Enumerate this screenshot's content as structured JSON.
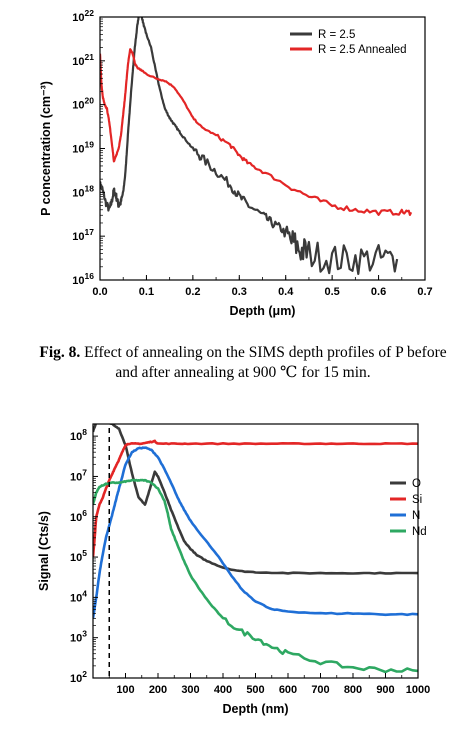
{
  "caption": {
    "label": "Fig. 8.",
    "text": "Effect of annealing on the SIMS depth profiles of P before and after annealing at 900 ℃ for 15 min."
  },
  "chart_data": [
    {
      "type": "line",
      "xlabel": "Depth (μm)",
      "ylabel": "P concentration (cm⁻³)",
      "xlim": [
        0.0,
        0.7
      ],
      "ylim": [
        1e+16,
        1e+22
      ],
      "yscale": "log",
      "xticks": [
        "0.0",
        "0.1",
        "0.2",
        "0.3",
        "0.4",
        "0.5",
        "0.6",
        "0.7"
      ],
      "yticks": [
        {
          "value": 1e+16,
          "base": "10",
          "exp": "16"
        },
        {
          "value": 1e+17,
          "base": "10",
          "exp": "17"
        },
        {
          "value": 1e+18,
          "base": "10",
          "exp": "18"
        },
        {
          "value": 1e+19,
          "base": "10",
          "exp": "19"
        },
        {
          "value": 1e+20,
          "base": "10",
          "exp": "20"
        },
        {
          "value": 1e+21,
          "base": "10",
          "exp": "21"
        },
        {
          "value": 1e+22,
          "base": "10",
          "exp": "22"
        }
      ],
      "grid": false,
      "legend": "top-right",
      "series": [
        {
          "name": "R = 2.5",
          "color": "#3a3a3a",
          "x": [
            0.0,
            0.005,
            0.012,
            0.02,
            0.025,
            0.03,
            0.035,
            0.04,
            0.045,
            0.05,
            0.055,
            0.06,
            0.065,
            0.07,
            0.075,
            0.08,
            0.085,
            0.09,
            0.095,
            0.1,
            0.11,
            0.12,
            0.13,
            0.14,
            0.15,
            0.16,
            0.17,
            0.18,
            0.2,
            0.22,
            0.25,
            0.28,
            0.3,
            0.32,
            0.35,
            0.37,
            0.39,
            0.41,
            0.43,
            0.45,
            0.5,
            0.55,
            0.6,
            0.64
          ],
          "y": [
            1.5e+18,
            1.2e+18,
            6e+17,
            4e+17,
            6e+17,
            1.1e+18,
            8e+17,
            5e+17,
            6e+17,
            1e+18,
            3e+18,
            2e+19,
            1e+20,
            5e+20,
            2e+21,
            6e+21,
            1.3e+22,
            1e+22,
            6e+21,
            4e+21,
            2e+21,
            6e+20,
            2e+20,
            8e+19,
            5e+19,
            3.5e+19,
            2.5e+19,
            1.8e+19,
            1e+19,
            6e+18,
            3e+18,
            1.5e+18,
            8e+17,
            5e+17,
            3e+17,
            2e+17,
            1.5e+17,
            8e+16,
            5e+16,
            4e+16,
            3e+16,
            3e+16,
            3e+16,
            3e+16
          ]
        },
        {
          "name": "R = 2.5 Annealed",
          "color": "#e32626",
          "x": [
            0.0,
            0.003,
            0.006,
            0.01,
            0.015,
            0.02,
            0.025,
            0.03,
            0.035,
            0.04,
            0.045,
            0.05,
            0.055,
            0.06,
            0.065,
            0.07,
            0.075,
            0.08,
            0.085,
            0.09,
            0.1,
            0.12,
            0.14,
            0.16,
            0.18,
            0.2,
            0.22,
            0.25,
            0.28,
            0.3,
            0.32,
            0.35,
            0.4,
            0.45,
            0.5,
            0.55,
            0.6,
            0.65,
            0.67
          ],
          "y": [
            1.5e+21,
            3e+20,
            1.5e+20,
            1e+20,
            8e+19,
            4e+19,
            1.5e+19,
            5e+18,
            7e+18,
            1e+19,
            2e+19,
            6e+19,
            2e+20,
            8e+20,
            1.8e+21,
            1.5e+21,
            9e+20,
            7e+20,
            6.5e+20,
            6e+20,
            5e+20,
            4e+20,
            3.5e+20,
            2.5e+20,
            1.2e+20,
            5e+19,
            3e+19,
            2e+19,
            1.2e+19,
            7e+18,
            4.5e+18,
            3e+18,
            1.5e+18,
            8e+17,
            5e+17,
            4e+17,
            3.5e+17,
            3.5e+17,
            3.5e+17
          ]
        }
      ]
    },
    {
      "type": "line",
      "xlabel": "Depth (nm)",
      "ylabel": "Signal (Cts/s)",
      "xlim": [
        0,
        1000
      ],
      "ylim": [
        100,
        200000000.0
      ],
      "yscale": "log",
      "xticks": [
        "100",
        "200",
        "300",
        "400",
        "500",
        "600",
        "700",
        "800",
        "900",
        "1000"
      ],
      "yticks": [
        {
          "value": 100,
          "base": "10",
          "exp": "2"
        },
        {
          "value": 1000,
          "base": "10",
          "exp": "3"
        },
        {
          "value": 10000,
          "base": "10",
          "exp": "4"
        },
        {
          "value": 100000,
          "base": "10",
          "exp": "5"
        },
        {
          "value": 1000000,
          "base": "10",
          "exp": "6"
        },
        {
          "value": 10000000,
          "base": "10",
          "exp": "7"
        },
        {
          "value": 100000000,
          "base": "10",
          "exp": "8"
        }
      ],
      "grid": false,
      "legend": "right",
      "annotations": [
        {
          "type": "vline",
          "x": 50,
          "style": "dashed"
        }
      ],
      "series": [
        {
          "name": "O",
          "color": "#3a3a3a",
          "x": [
            0,
            10,
            20,
            40,
            60,
            80,
            100,
            120,
            140,
            160,
            175,
            190,
            200,
            220,
            240,
            260,
            280,
            300,
            320,
            350,
            400,
            450,
            500,
            600,
            700,
            800,
            900,
            1000
          ],
          "y": [
            130000000.0,
            220000000.0,
            230000000.0,
            220000000.0,
            200000000.0,
            150000000.0,
            60000000.0,
            12000000.0,
            3000000.0,
            2000000.0,
            5000000.0,
            13000000.0,
            10000000.0,
            4000000.0,
            1500000.0,
            600000.0,
            250000.0,
            160000.0,
            110000.0,
            80000.0,
            55000.0,
            45000.0,
            42000.0,
            40000.0,
            40000.0,
            40000.0,
            40000.0,
            40000.0
          ]
        },
        {
          "name": "Si",
          "color": "#e32626",
          "x": [
            0,
            5,
            10,
            20,
            30,
            40,
            50,
            60,
            70,
            80,
            90,
            100,
            110,
            130,
            150,
            170,
            190,
            200,
            250,
            300,
            400,
            500,
            600,
            700,
            800,
            900,
            1000
          ],
          "y": [
            100000.0,
            300000.0,
            1000000.0,
            2000000.0,
            3000000.0,
            5000000.0,
            8000000.0,
            12000000.0,
            18000000.0,
            26000000.0,
            40000000.0,
            60000000.0,
            65000000.0,
            65000000.0,
            65000000.0,
            70000000.0,
            75000000.0,
            65000000.0,
            65000000.0,
            65000000.0,
            65000000.0,
            65000000.0,
            65000000.0,
            65000000.0,
            65000000.0,
            65000000.0,
            65000000.0
          ]
        },
        {
          "name": "N",
          "color": "#1f6fd6",
          "x": [
            0,
            10,
            20,
            30,
            40,
            50,
            60,
            70,
            80,
            90,
            100,
            120,
            140,
            160,
            180,
            200,
            220,
            240,
            260,
            280,
            300,
            340,
            380,
            420,
            460,
            500,
            550,
            600,
            700,
            800,
            900,
            1000
          ],
          "y": [
            3000.0,
            10000.0,
            40000.0,
            120000.0,
            300000.0,
            600000.0,
            1200000.0,
            2500000.0,
            5000000.0,
            10000000.0,
            20000000.0,
            40000000.0,
            50000000.0,
            52000000.0,
            45000000.0,
            30000000.0,
            15000000.0,
            7000000.0,
            3000000.0,
            1500000.0,
            800000.0,
            300000.0,
            120000.0,
            40000.0,
            15000.0,
            8000.0,
            5000.0,
            4500.0,
            4000.0,
            4000.0,
            3800.0,
            3800.0
          ]
        },
        {
          "name": "Nd",
          "color": "#2ea862",
          "x": [
            0,
            10,
            20,
            30,
            40,
            60,
            80,
            100,
            120,
            140,
            160,
            180,
            200,
            220,
            230,
            240,
            260,
            280,
            300,
            330,
            360,
            400,
            450,
            500,
            550,
            600,
            700,
            800,
            900,
            1000
          ],
          "y": [
            2000000.0,
            4000000.0,
            5500000.0,
            6000000.0,
            6500000.0,
            7000000.0,
            7000000.0,
            7500000.0,
            8000000.0,
            8000000.0,
            8000000.0,
            7000000.0,
            5000000.0,
            2500000.0,
            1200000.0,
            500000.0,
            200000.0,
            80000.0,
            35000.0,
            15000.0,
            7000.0,
            3000.0,
            1500.0,
            1000.0,
            600.0,
            400.0,
            250.0,
            180.0,
            160.0,
            150.0
          ]
        }
      ]
    }
  ]
}
